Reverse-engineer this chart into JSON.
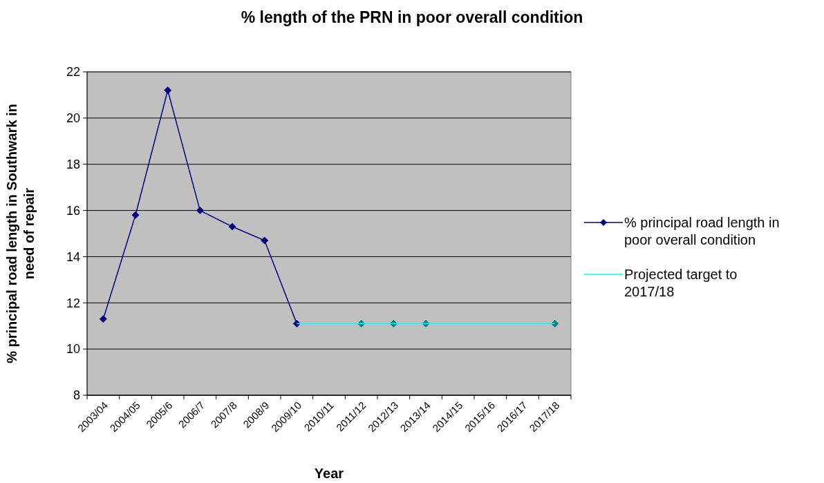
{
  "chart_data": {
    "type": "line",
    "title": "% length of the PRN in poor overall condition",
    "xlabel": "Year",
    "ylabel": "% principal road length in Southwark in need of repair",
    "categories": [
      "2003/04",
      "2004/05",
      "2005/6",
      "2006/7",
      "2007/8",
      "2008/9",
      "2009/10",
      "2010/11",
      "2011/12",
      "2012/13",
      "2013/14",
      "2014/15",
      "2015/16",
      "2016/17",
      "2017/18"
    ],
    "series": [
      {
        "name": "% principal road length in poor overall condition",
        "color": "#000080",
        "marker": "diamond",
        "values": [
          11.3,
          15.8,
          21.2,
          16.0,
          15.3,
          14.7,
          11.1,
          null,
          null,
          null,
          null,
          null,
          null,
          null,
          null
        ]
      },
      {
        "name": "Projected target to 2017/18",
        "color": "#00ffff",
        "marker": "none",
        "x": [
          "2009/10",
          "2017/18"
        ],
        "values": [
          11.1,
          11.1
        ]
      },
      {
        "type": "scatter",
        "color": "#008080",
        "marker": "diamond",
        "x": [
          "2011/12",
          "2012/13",
          "2013/14",
          "2017/18"
        ],
        "values": [
          11.1,
          11.1,
          11.1,
          11.1
        ]
      }
    ],
    "ylim": [
      8,
      22
    ],
    "yticks": [
      8,
      10,
      12,
      14,
      16,
      18,
      20,
      22
    ],
    "grid": "y",
    "legend": "right"
  }
}
